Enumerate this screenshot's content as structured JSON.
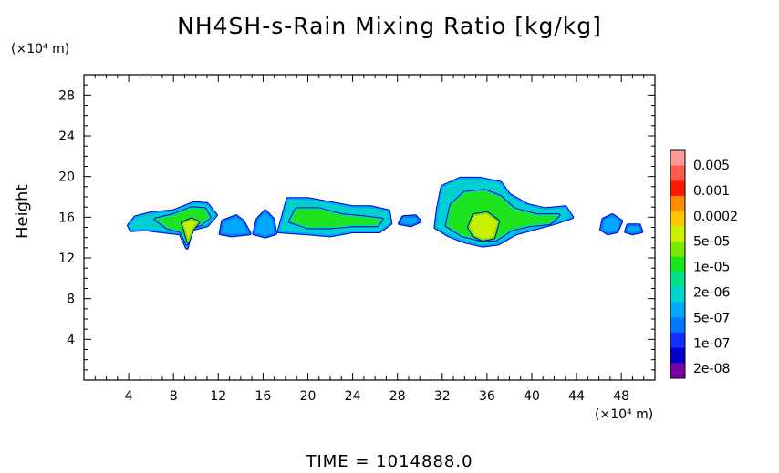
{
  "chart_data": {
    "type": "heatmap",
    "title": "NH4SH-s-Rain Mixing Ratio [kg/kg]",
    "ylabel": "Height",
    "x_unit_label": "(×10⁴ m)",
    "y_unit_label": "(×10⁴ m)",
    "xlim": [
      0,
      51
    ],
    "ylim": [
      0,
      30
    ],
    "x_ticks": [
      "4",
      "8",
      "12",
      "16",
      "20",
      "24",
      "28",
      "32",
      "36",
      "40",
      "44",
      "48"
    ],
    "x_tick_values": [
      4,
      8,
      12,
      16,
      20,
      24,
      28,
      32,
      36,
      40,
      44,
      48
    ],
    "y_ticks": [
      "4",
      "8",
      "12",
      "16",
      "20",
      "24",
      "28"
    ],
    "y_tick_values": [
      4,
      8,
      12,
      16,
      20,
      24,
      28
    ],
    "legend": {
      "labels": [
        "0.005",
        "0.001",
        "0.0002",
        "5e-05",
        "1e-05",
        "2e-06",
        "5e-07",
        "1e-07",
        "2e-08"
      ],
      "colors": [
        "#ff9a9a",
        "#ff5a4a",
        "#ff1a00",
        "#ff8c00",
        "#ffc400",
        "#c8f000",
        "#7ae800",
        "#1ee41e",
        "#00e08c",
        "#00d0d0",
        "#00a8ff",
        "#0078ff",
        "#1430ff",
        "#0000c8",
        "#7a00a8"
      ]
    },
    "regions": [
      {
        "name": "cloud-a",
        "level": 7,
        "points": [
          [
            4.0,
            15.2
          ],
          [
            4.6,
            16.0
          ],
          [
            6.0,
            16.4
          ],
          [
            8.0,
            16.6
          ],
          [
            9.8,
            17.4
          ],
          [
            11.0,
            17.3
          ],
          [
            11.8,
            16.2
          ],
          [
            11.0,
            15.2
          ],
          [
            9.6,
            14.8
          ],
          [
            9.2,
            13.0
          ],
          [
            8.6,
            14.4
          ],
          [
            7.0,
            14.6
          ],
          [
            5.4,
            14.8
          ],
          [
            4.2,
            14.7
          ]
        ]
      },
      {
        "name": "cloud-a-core",
        "level": 5,
        "points": [
          [
            6.4,
            15.8
          ],
          [
            8.0,
            16.2
          ],
          [
            9.6,
            16.9
          ],
          [
            10.8,
            16.8
          ],
          [
            11.2,
            16.0
          ],
          [
            10.4,
            15.3
          ],
          [
            9.6,
            15.0
          ],
          [
            9.2,
            13.4
          ],
          [
            8.7,
            14.6
          ],
          [
            7.4,
            15.0
          ]
        ]
      },
      {
        "name": "cloud-a-hot",
        "level": 3,
        "points": [
          [
            8.8,
            15.4
          ],
          [
            9.6,
            15.8
          ],
          [
            10.2,
            15.5
          ],
          [
            9.7,
            14.8
          ],
          [
            9.3,
            13.6
          ],
          [
            9.0,
            14.8
          ]
        ]
      },
      {
        "name": "cloud-b",
        "level": 8,
        "points": [
          [
            12.2,
            14.4
          ],
          [
            12.4,
            15.6
          ],
          [
            13.6,
            16.1
          ],
          [
            14.2,
            15.6
          ],
          [
            14.8,
            14.4
          ],
          [
            13.2,
            14.2
          ]
        ]
      },
      {
        "name": "cloud-c",
        "level": 8,
        "points": [
          [
            15.2,
            14.4
          ],
          [
            15.5,
            15.8
          ],
          [
            16.2,
            16.6
          ],
          [
            16.9,
            15.8
          ],
          [
            17.1,
            14.4
          ],
          [
            16.2,
            14.1
          ]
        ]
      },
      {
        "name": "cloud-d",
        "level": 7,
        "points": [
          [
            17.4,
            14.6
          ],
          [
            17.8,
            16.2
          ],
          [
            18.2,
            17.8
          ],
          [
            20.0,
            17.8
          ],
          [
            22.0,
            17.4
          ],
          [
            24.0,
            17.0
          ],
          [
            25.6,
            17.0
          ],
          [
            27.2,
            16.6
          ],
          [
            27.4,
            15.4
          ],
          [
            26.4,
            14.6
          ],
          [
            24.0,
            14.6
          ],
          [
            22.0,
            14.2
          ],
          [
            20.0,
            14.4
          ],
          [
            18.6,
            14.5
          ]
        ]
      },
      {
        "name": "cloud-d-core",
        "level": 5,
        "points": [
          [
            18.4,
            15.6
          ],
          [
            19.0,
            16.8
          ],
          [
            21.0,
            16.8
          ],
          [
            23.0,
            16.2
          ],
          [
            25.0,
            16.0
          ],
          [
            26.6,
            15.8
          ],
          [
            26.2,
            15.2
          ],
          [
            24.0,
            15.2
          ],
          [
            22.0,
            15.0
          ],
          [
            20.0,
            15.0
          ]
        ]
      },
      {
        "name": "cloud-e",
        "level": 8,
        "points": [
          [
            28.2,
            15.4
          ],
          [
            28.5,
            16.0
          ],
          [
            29.6,
            16.1
          ],
          [
            30.0,
            15.6
          ],
          [
            29.2,
            15.2
          ]
        ]
      },
      {
        "name": "cloud-f",
        "level": 7,
        "points": [
          [
            31.4,
            15.0
          ],
          [
            31.6,
            16.8
          ],
          [
            32.0,
            19.0
          ],
          [
            33.6,
            19.8
          ],
          [
            35.4,
            19.8
          ],
          [
            37.2,
            19.4
          ],
          [
            38.0,
            18.2
          ],
          [
            39.6,
            17.2
          ],
          [
            41.2,
            16.8
          ],
          [
            43.0,
            17.0
          ],
          [
            43.6,
            16.0
          ],
          [
            42.0,
            15.4
          ],
          [
            40.0,
            14.8
          ],
          [
            38.6,
            14.4
          ],
          [
            37.0,
            13.4
          ],
          [
            35.6,
            13.2
          ],
          [
            34.0,
            13.6
          ],
          [
            32.6,
            14.2
          ]
        ]
      },
      {
        "name": "cloud-f-core",
        "level": 5,
        "points": [
          [
            32.4,
            15.2
          ],
          [
            32.8,
            17.2
          ],
          [
            34.0,
            18.4
          ],
          [
            35.8,
            18.6
          ],
          [
            37.2,
            18.0
          ],
          [
            38.4,
            16.8
          ],
          [
            40.4,
            16.2
          ],
          [
            42.4,
            16.2
          ],
          [
            41.6,
            15.4
          ],
          [
            39.8,
            15.2
          ],
          [
            38.2,
            14.8
          ],
          [
            36.8,
            13.8
          ],
          [
            35.4,
            13.8
          ],
          [
            33.8,
            14.2
          ]
        ]
      },
      {
        "name": "cloud-f-hot",
        "level": 3,
        "points": [
          [
            34.4,
            15.0
          ],
          [
            34.8,
            16.2
          ],
          [
            36.0,
            16.4
          ],
          [
            37.0,
            15.6
          ],
          [
            36.6,
            14.0
          ],
          [
            35.6,
            13.8
          ],
          [
            34.8,
            14.2
          ]
        ]
      },
      {
        "name": "cloud-g",
        "level": 8,
        "points": [
          [
            46.2,
            14.8
          ],
          [
            46.4,
            15.8
          ],
          [
            47.2,
            16.2
          ],
          [
            48.0,
            15.6
          ],
          [
            47.6,
            14.6
          ],
          [
            46.8,
            14.4
          ]
        ]
      },
      {
        "name": "cloud-h",
        "level": 8,
        "points": [
          [
            48.4,
            14.6
          ],
          [
            48.6,
            15.2
          ],
          [
            49.6,
            15.2
          ],
          [
            49.8,
            14.6
          ],
          [
            49.0,
            14.4
          ]
        ]
      }
    ]
  },
  "time_label": "TIME = 1014888.0"
}
